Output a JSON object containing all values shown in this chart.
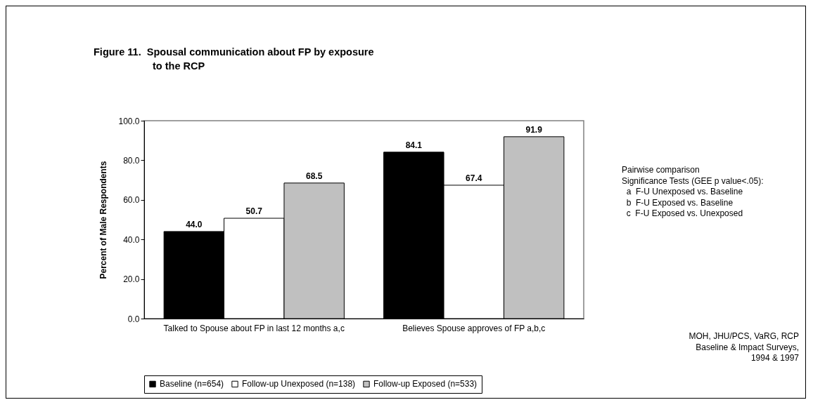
{
  "chart_data": {
    "type": "bar",
    "title": "Figure 11.  Spousal communication about FP by exposure to the RCP",
    "ylabel": "Percent of Male Respondents",
    "categories": [
      "Talked to Spouse about FP in last 12 months a,c",
      "Believes Spouse approves of FP a,b,c"
    ],
    "series": [
      {
        "name": "Baseline (n=654)",
        "color": "#000000",
        "values": [
          44.0,
          84.1
        ],
        "value_labels": [
          "44.0",
          "84.1"
        ]
      },
      {
        "name": "Follow-up Unexposed (n=138)",
        "color": "#ffffff",
        "values": [
          50.7,
          67.4
        ],
        "value_labels": [
          "50.7",
          "67.4"
        ]
      },
      {
        "name": "Follow-up Exposed (n=533)",
        "color": "#c0c0c0",
        "values": [
          68.5,
          91.9
        ],
        "value_labels": [
          "68.5",
          "91.9"
        ]
      }
    ],
    "ylim": [
      0,
      100
    ],
    "yticks": [
      {
        "value": 0,
        "label": "0.0"
      },
      {
        "value": 20,
        "label": "20.0"
      },
      {
        "value": 40,
        "label": "40.0"
      },
      {
        "value": 60,
        "label": "60.0"
      },
      {
        "value": 80,
        "label": "80.0"
      },
      {
        "value": 100,
        "label": "100.0"
      }
    ],
    "grid": false,
    "legend": "bottom",
    "annotations": [
      "Pairwise comparison",
      "Significance Tests (GEE p value<.05):",
      "  a  F-U Unexposed vs. Baseline",
      "  b  F-U Exposed vs. Baseline",
      "  c  F-U Exposed vs. Unexposed",
      "MOH, JHU/PCS, VaRG, RCP",
      "Baseline & Impact Surveys,",
      "1994 & 1997"
    ]
  }
}
